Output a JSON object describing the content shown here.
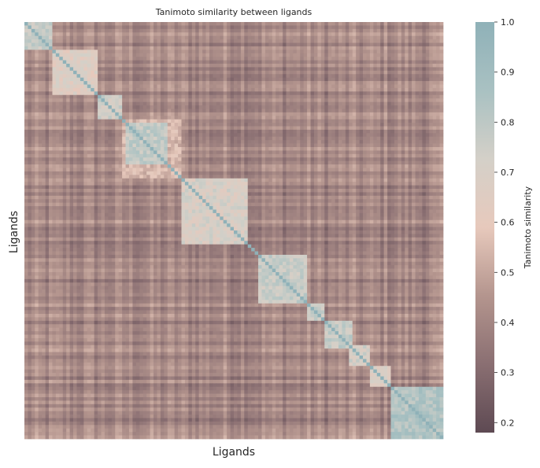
{
  "chart_data": {
    "type": "heatmap",
    "title": "Tanimoto similarity between ligands",
    "xlabel": "Ligands",
    "ylabel": "Ligands",
    "colorbar": {
      "label": "Tanimoto similarity",
      "range": [
        0.18,
        1.0
      ],
      "ticks": [
        0.2,
        0.3,
        0.4,
        0.5,
        0.6,
        0.7,
        0.8,
        0.9,
        1.0
      ],
      "tick_labels": [
        "0.2",
        "0.3",
        "0.4",
        "0.5",
        "0.6",
        "0.7",
        "0.8",
        "0.9",
        "1.0"
      ],
      "colormap": [
        "#5e4a53",
        "#8a6f72",
        "#b4958e",
        "#e7c9bc",
        "#d4d0c8",
        "#a9c1c2",
        "#8fb1b8"
      ]
    },
    "matrix_size": 120,
    "diagonal_value": 1.0,
    "clusters": [
      {
        "start": 0,
        "end": 7,
        "within_similarity": 0.78
      },
      {
        "start": 8,
        "end": 20,
        "within_similarity": 0.66
      },
      {
        "start": 21,
        "end": 27,
        "within_similarity": 0.74
      },
      {
        "start": 28,
        "end": 44,
        "within_similarity": 0.55
      },
      {
        "start": 29,
        "end": 40,
        "within_similarity": 0.78
      },
      {
        "start": 45,
        "end": 63,
        "within_similarity": 0.7
      },
      {
        "start": 67,
        "end": 80,
        "within_similarity": 0.76
      },
      {
        "start": 81,
        "end": 85,
        "within_similarity": 0.75
      },
      {
        "start": 86,
        "end": 93,
        "within_similarity": 0.77
      },
      {
        "start": 93,
        "end": 98,
        "within_similarity": 0.72
      },
      {
        "start": 99,
        "end": 104,
        "within_similarity": 0.68
      },
      {
        "start": 105,
        "end": 119,
        "within_similarity": 0.84
      }
    ],
    "background_similarity": [
      0.25,
      0.55
    ],
    "show_tick_labels": false,
    "grid": false
  }
}
